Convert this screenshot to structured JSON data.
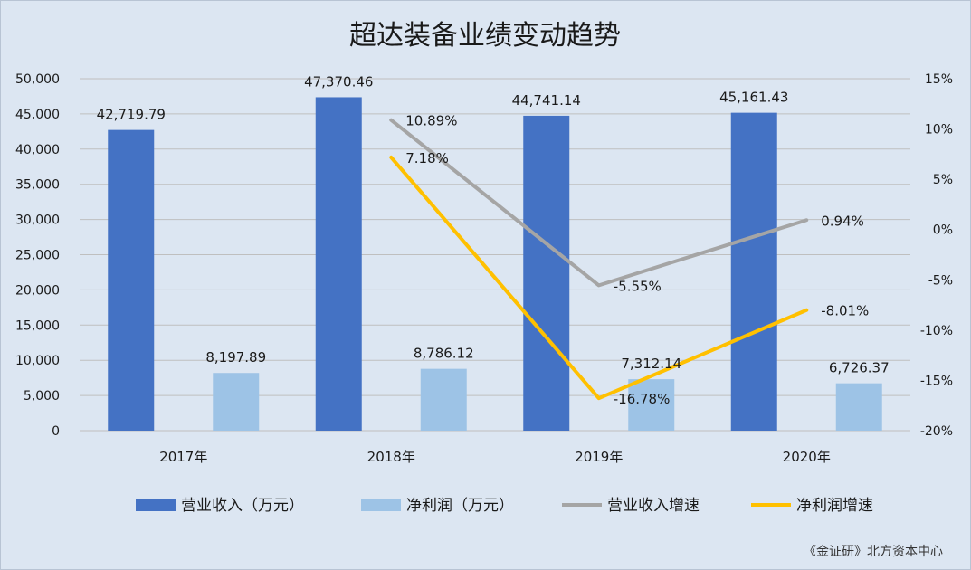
{
  "chart_data": {
    "type": "bar",
    "title": "超达装备业绩变动趋势",
    "categories": [
      "2017年",
      "2018年",
      "2019年",
      "2020年"
    ],
    "series": [
      {
        "name": "营业收入（万元）",
        "kind": "bar",
        "axis": "left",
        "color": "#4472c4",
        "values": [
          42719.79,
          47370.46,
          44741.14,
          45161.43
        ],
        "labels": [
          "42,719.79",
          "47,370.46",
          "44,741.14",
          "45,161.43"
        ]
      },
      {
        "name": "净利润（万元）",
        "kind": "bar",
        "axis": "left",
        "color": "#9dc3e6",
        "values": [
          8197.89,
          8786.12,
          7312.14,
          6726.37
        ],
        "labels": [
          "8,197.89",
          "8,786.12",
          "7,312.14",
          "6,726.37"
        ]
      },
      {
        "name": "营业收入增速",
        "kind": "line",
        "axis": "right",
        "color": "#a5a5a5",
        "values": [
          null,
          10.89,
          -5.55,
          0.94
        ],
        "labels": [
          "",
          "10.89%",
          "-5.55%",
          "0.94%"
        ]
      },
      {
        "name": "净利润增速",
        "kind": "line",
        "axis": "right",
        "color": "#ffc000",
        "values": [
          null,
          7.18,
          -16.78,
          -8.01
        ],
        "labels": [
          "",
          "7.18%",
          "-16.78%",
          "-8.01%"
        ]
      }
    ],
    "y_left": {
      "min": 0,
      "max": 50000,
      "ticks": [
        0,
        5000,
        10000,
        15000,
        20000,
        25000,
        30000,
        35000,
        40000,
        45000,
        50000
      ],
      "tick_labels": [
        "0",
        "5,000",
        "10,000",
        "15,000",
        "20,000",
        "25,000",
        "30,000",
        "35,000",
        "40,000",
        "45,000",
        "50,000"
      ]
    },
    "y_right": {
      "min": -20,
      "max": 15,
      "ticks": [
        -20,
        -15,
        -10,
        -5,
        0,
        5,
        10,
        15
      ],
      "tick_labels": [
        "-20%",
        "-15%",
        "-10%",
        "-5%",
        "0%",
        "5%",
        "10%",
        "15%"
      ]
    },
    "grid": true,
    "legend_position": "bottom"
  },
  "source": "《金证研》北方资本中心",
  "colors": {
    "background": "#dce6f2",
    "gridline": "#bfbfbf",
    "text": "#1a1a1a"
  }
}
